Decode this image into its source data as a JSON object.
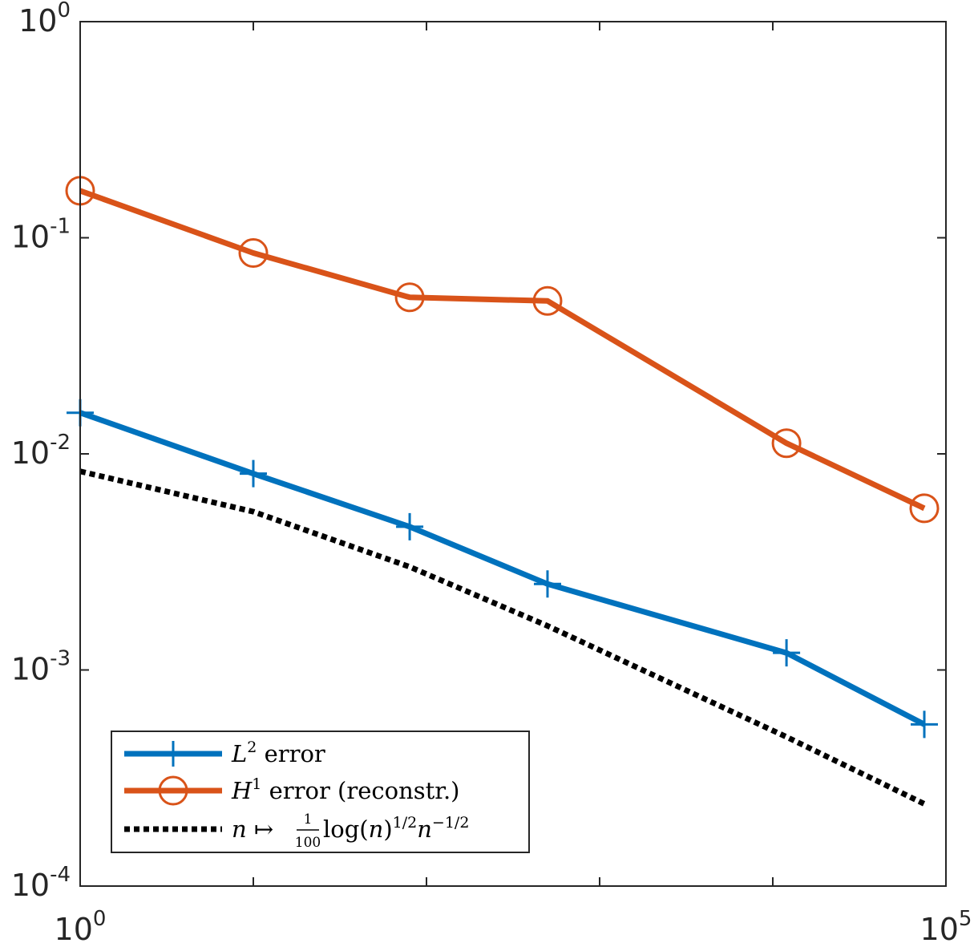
{
  "chart_data": {
    "type": "line",
    "x_scale": "log",
    "y_scale": "log",
    "xlim": [
      1,
      100000
    ],
    "ylim": [
      0.0001,
      1
    ],
    "title": "",
    "xlabel": "",
    "ylabel": "",
    "x_tick_labels": [
      {
        "base": "10",
        "exp": "0",
        "value": 1
      },
      {
        "base": "10",
        "exp": "5",
        "value": 100000
      }
    ],
    "y_tick_labels": [
      {
        "base": "10",
        "exp": "0",
        "value": 1
      },
      {
        "base": "10",
        "exp": "-1",
        "value": 0.1
      },
      {
        "base": "10",
        "exp": "-2",
        "value": 0.01
      },
      {
        "base": "10",
        "exp": "-3",
        "value": 0.001
      },
      {
        "base": "10",
        "exp": "-4",
        "value": 0.0001
      }
    ],
    "legend_position": "bottom-left",
    "series": [
      {
        "name": "L2 error",
        "legend_label": {
          "symbol": "L",
          "sup": "2",
          "rest": " error"
        },
        "color": "#0072BD",
        "marker": "plus",
        "line_style": "solid",
        "x": [
          1,
          10,
          80,
          500,
          12000,
          75000
        ],
        "y": [
          0.0155,
          0.0081,
          0.0046,
          0.0025,
          0.0012,
          0.00056
        ]
      },
      {
        "name": "H1 error (reconstr.)",
        "legend_label": {
          "symbol": "H",
          "sup": "1",
          "rest": " error (reconstr.)"
        },
        "color": "#D95319",
        "marker": "circle",
        "line_style": "solid",
        "x": [
          1,
          10,
          80,
          500,
          12000,
          75000
        ],
        "y": [
          0.165,
          0.085,
          0.053,
          0.051,
          0.0112,
          0.0056
        ]
      },
      {
        "name": "n ↦ 1/100 log(n)^(1/2) n^(-1/2)",
        "legend_label": {
          "a": "n",
          "b": " ↦ ",
          "num": "1",
          "den": "100",
          "c": " log(",
          "d": "n",
          "e": ")",
          "sup1": "1/2",
          "f": "n",
          "sup2": "−1/2"
        },
        "color": "#000000",
        "marker": "none",
        "line_style": "dotted",
        "x": [
          1,
          10,
          80,
          500,
          12000,
          75000
        ],
        "y": [
          0.0083,
          0.0054,
          0.003,
          0.0016,
          0.00049,
          0.00024
        ]
      }
    ]
  }
}
